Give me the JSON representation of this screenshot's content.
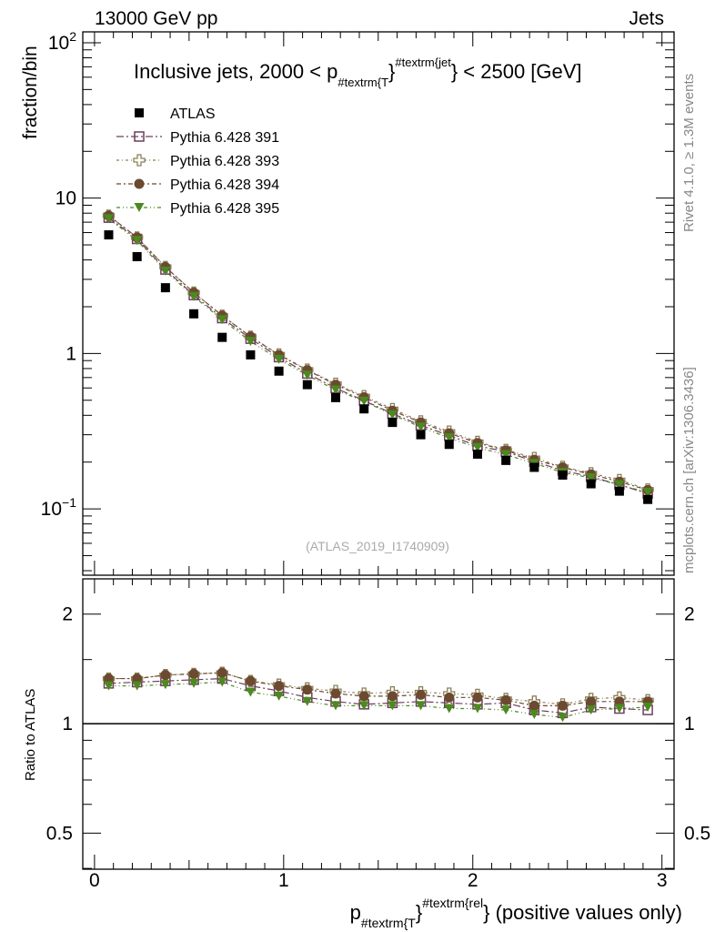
{
  "header": {
    "left": "13000 GeV pp",
    "right": "Jets"
  },
  "side_text": {
    "rivet": "Rivet 4.1.0, ≥ 1.3M events",
    "mcplots": "mcplots.cern.ch [arXiv:1306.3436]"
  },
  "watermark": "(ATLAS_2019_I1740909)",
  "title": {
    "prefix": "Inclusive jets, 2000 < p",
    "sub": "#textrm{T",
    "mid": "}",
    "sup": "#textrm{jet",
    "suffix": "} < 2500 [GeV]"
  },
  "xlabel": {
    "p": "p",
    "sub": "#textrm{T",
    "mid": "}",
    "sup": "#textrm{rel",
    "suffix": "} (positive values only)"
  },
  "ylabel_main": "fraction/bin",
  "ylabel_ratio": "Ratio to ATLAS",
  "colors": {
    "atlas": "#000000",
    "s391": "#6e3d5e",
    "s393": "#8c7f58",
    "s394": "#6b4a30",
    "s395": "#4b8a1e"
  },
  "chart_data": [
    {
      "type": "scatter",
      "panel": "main",
      "yscale": "log",
      "ylabel": "fraction/bin",
      "xlim": [
        -0.062,
        3.064
      ],
      "ylim": [
        0.0374,
        117.5
      ],
      "yticks": [
        {
          "v": 100,
          "base": "10",
          "exp": "2"
        },
        {
          "v": 10,
          "base": "10",
          "exp": ""
        },
        {
          "v": 1,
          "base": "1",
          "exp": ""
        },
        {
          "v": 0.1,
          "base": "10",
          "exp": "−1"
        }
      ],
      "x": [
        0.075,
        0.225,
        0.375,
        0.525,
        0.675,
        0.825,
        0.975,
        1.125,
        1.275,
        1.425,
        1.575,
        1.725,
        1.875,
        2.025,
        2.175,
        2.325,
        2.475,
        2.625,
        2.775,
        2.925
      ],
      "atlas": {
        "name": "ATLAS",
        "values": [
          5.8,
          4.2,
          2.65,
          1.8,
          1.27,
          0.98,
          0.77,
          0.63,
          0.52,
          0.44,
          0.36,
          0.3,
          0.26,
          0.225,
          0.205,
          0.185,
          0.165,
          0.145,
          0.13,
          0.115
        ]
      },
      "legend": [
        "ATLAS",
        "Pythia 6.428 391",
        "Pythia 6.428 393",
        "Pythia 6.428 394",
        "Pythia 6.428 395"
      ],
      "legend_position": "top-left"
    },
    {
      "type": "line",
      "panel": "ratio",
      "yscale": "log",
      "ylabel": "Ratio to ATLAS",
      "ylim": [
        0.398,
        2.5
      ],
      "yticks": [
        "2",
        "1",
        "0.5"
      ],
      "xticks": [
        "0",
        "1",
        "2",
        "3"
      ],
      "series": [
        {
          "name": "Pythia 6.428 391",
          "key": "s391",
          "marker": "open-square",
          "values": [
            1.29,
            1.3,
            1.31,
            1.32,
            1.33,
            1.27,
            1.23,
            1.18,
            1.15,
            1.13,
            1.14,
            1.15,
            1.14,
            1.13,
            1.14,
            1.09,
            1.07,
            1.11,
            1.1,
            1.09
          ]
        },
        {
          "name": "Pythia 6.428 393",
          "key": "s393",
          "marker": "open-cross",
          "values": [
            1.33,
            1.33,
            1.36,
            1.37,
            1.38,
            1.31,
            1.28,
            1.25,
            1.23,
            1.21,
            1.22,
            1.22,
            1.21,
            1.2,
            1.17,
            1.15,
            1.13,
            1.17,
            1.18,
            1.16
          ]
        },
        {
          "name": "Pythia 6.428 394",
          "key": "s394",
          "marker": "circle",
          "values": [
            1.33,
            1.33,
            1.36,
            1.37,
            1.38,
            1.31,
            1.27,
            1.24,
            1.21,
            1.19,
            1.19,
            1.2,
            1.18,
            1.18,
            1.16,
            1.12,
            1.12,
            1.15,
            1.15,
            1.15
          ]
        },
        {
          "name": "Pythia 6.428 395",
          "key": "s395",
          "marker": "triangle-down",
          "values": [
            1.27,
            1.27,
            1.28,
            1.29,
            1.3,
            1.22,
            1.19,
            1.15,
            1.12,
            1.12,
            1.12,
            1.12,
            1.1,
            1.1,
            1.09,
            1.06,
            1.04,
            1.09,
            1.1,
            1.11
          ]
        }
      ]
    }
  ]
}
